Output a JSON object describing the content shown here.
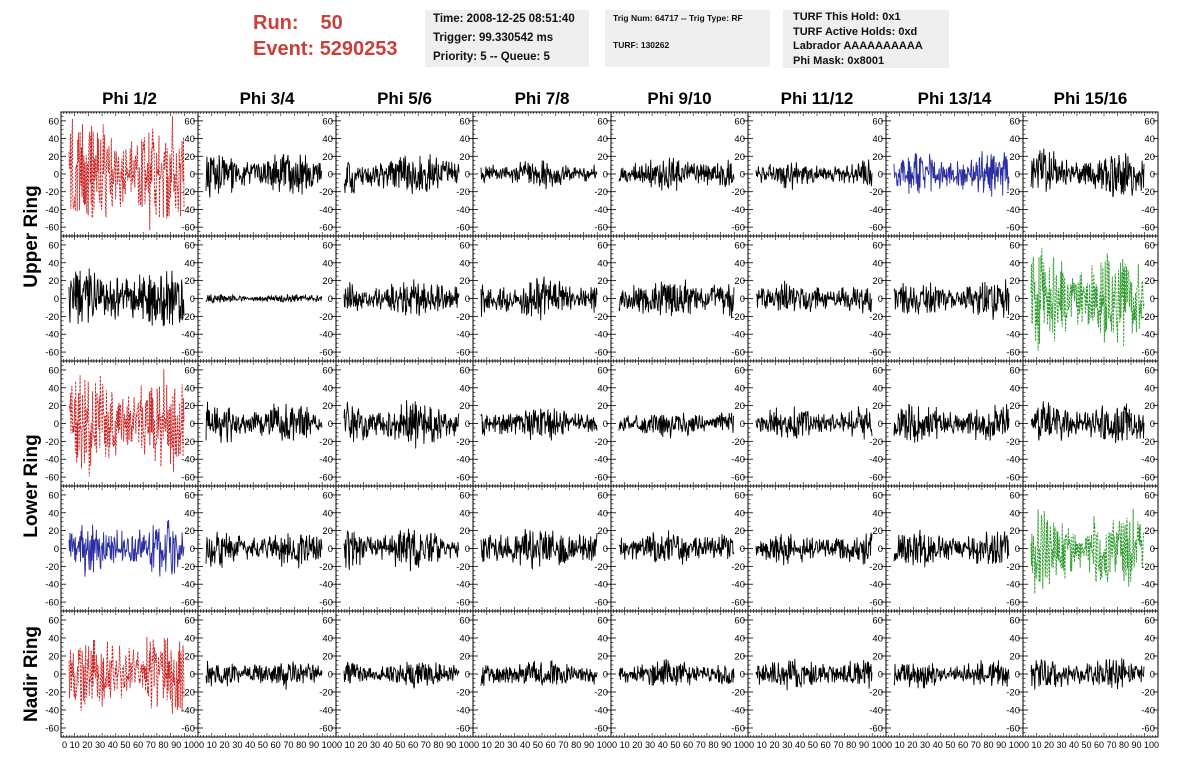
{
  "header": {
    "run_label": "Run:",
    "run_value": "50",
    "event_label": "Event:",
    "event_value": "5290253"
  },
  "info_boxes": {
    "box1": [
      "Time: 2008-12-25 08:51:40",
      "Trigger: 99.330542 ms",
      "Priority: 5 -- Queue: 5"
    ],
    "box2": [
      "Trig Num: 64717 -- Trig Type: RF",
      "TURF: 130262"
    ],
    "box3": [
      "TURF This Hold: 0x1",
      "TURF Active Holds: 0xd",
      "Labrador AAAAAAAAAA",
      "Phi Mask: 0x8001"
    ]
  },
  "colors": {
    "red": "#cc2222",
    "blue": "#2a2ea0",
    "green": "#2a9a2a",
    "black": "#000000"
  },
  "chart_data": {
    "type": "line",
    "columns": [
      "Phi 1/2",
      "Phi 3/4",
      "Phi 5/6",
      "Phi 7/8",
      "Phi 9/10",
      "Phi 11/12",
      "Phi 13/14",
      "Phi 15/16"
    ],
    "row_groups": [
      {
        "label": "Upper Ring",
        "rows": [
          0,
          1
        ]
      },
      {
        "label": "Lower Ring",
        "rows": [
          2,
          3
        ]
      },
      {
        "label": "Nadir Ring",
        "rows": [
          4
        ]
      }
    ],
    "xlim": [
      0,
      100
    ],
    "ylim": [
      -70,
      70
    ],
    "y_ticks": [
      -60,
      -40,
      -20,
      0,
      20,
      40,
      60
    ],
    "x_ticks": [
      0,
      10,
      20,
      30,
      40,
      50,
      60,
      70,
      80,
      90,
      100
    ],
    "x_tick_labels_text": "0 10 20 30 40 50 60 70 80 90 100",
    "traces": [
      [
        {
          "color": "red",
          "dashed": true,
          "amp": 55
        },
        {
          "color": "black",
          "dashed": false,
          "amp": 20
        },
        {
          "color": "black",
          "dashed": false,
          "amp": 20
        },
        {
          "color": "black",
          "dashed": false,
          "amp": 13
        },
        {
          "color": "black",
          "dashed": false,
          "amp": 17
        },
        {
          "color": "black",
          "dashed": false,
          "amp": 13
        },
        {
          "color": "blue",
          "dashed": false,
          "amp": 22
        },
        {
          "color": "black",
          "dashed": false,
          "amp": 22
        }
      ],
      [
        {
          "color": "black",
          "dashed": false,
          "amp": 30
        },
        {
          "color": "black",
          "dashed": false,
          "amp": 4
        },
        {
          "color": "black",
          "dashed": false,
          "amp": 18
        },
        {
          "color": "black",
          "dashed": false,
          "amp": 20
        },
        {
          "color": "black",
          "dashed": false,
          "amp": 20
        },
        {
          "color": "black",
          "dashed": false,
          "amp": 15
        },
        {
          "color": "black",
          "dashed": false,
          "amp": 18
        },
        {
          "color": "green",
          "dashed": true,
          "amp": 45
        }
      ],
      [
        {
          "color": "red",
          "dashed": true,
          "amp": 45
        },
        {
          "color": "black",
          "dashed": false,
          "amp": 20
        },
        {
          "color": "black",
          "dashed": false,
          "amp": 22
        },
        {
          "color": "black",
          "dashed": false,
          "amp": 16
        },
        {
          "color": "black",
          "dashed": false,
          "amp": 13
        },
        {
          "color": "black",
          "dashed": false,
          "amp": 16
        },
        {
          "color": "black",
          "dashed": false,
          "amp": 18
        },
        {
          "color": "black",
          "dashed": false,
          "amp": 20
        }
      ],
      [
        {
          "color": "blue",
          "dashed": false,
          "amp": 25
        },
        {
          "color": "black",
          "dashed": false,
          "amp": 18
        },
        {
          "color": "black",
          "dashed": false,
          "amp": 20
        },
        {
          "color": "black",
          "dashed": false,
          "amp": 20
        },
        {
          "color": "black",
          "dashed": false,
          "amp": 16
        },
        {
          "color": "black",
          "dashed": false,
          "amp": 16
        },
        {
          "color": "black",
          "dashed": false,
          "amp": 18
        },
        {
          "color": "green",
          "dashed": true,
          "amp": 40
        }
      ],
      [
        {
          "color": "red",
          "dashed": true,
          "amp": 40
        },
        {
          "color": "black",
          "dashed": false,
          "amp": 13
        },
        {
          "color": "black",
          "dashed": false,
          "amp": 13
        },
        {
          "color": "black",
          "dashed": false,
          "amp": 13
        },
        {
          "color": "black",
          "dashed": false,
          "amp": 13
        },
        {
          "color": "black",
          "dashed": false,
          "amp": 15
        },
        {
          "color": "black",
          "dashed": false,
          "amp": 13
        },
        {
          "color": "black",
          "dashed": false,
          "amp": 15
        }
      ]
    ]
  }
}
